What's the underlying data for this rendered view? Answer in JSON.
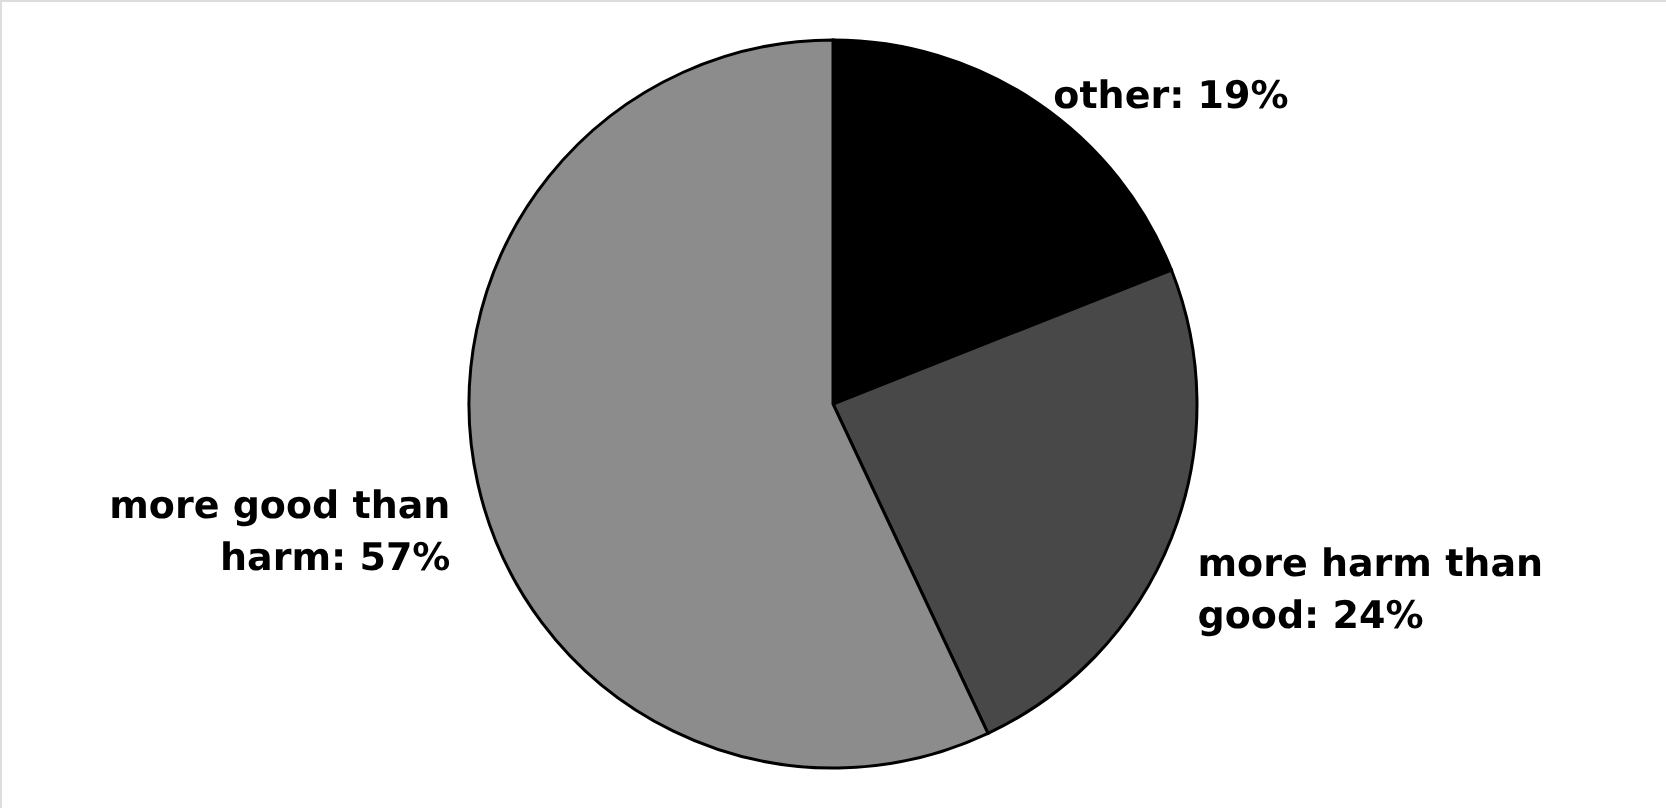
{
  "chart_data": {
    "type": "pie",
    "categories": [
      "other",
      "more harm than good",
      "more good than harm"
    ],
    "values": [
      19,
      24,
      57
    ],
    "colors": [
      "#000000",
      "#484848",
      "#8c8c8c"
    ],
    "value_labels": [
      "19%",
      "24%",
      "57%"
    ]
  }
}
